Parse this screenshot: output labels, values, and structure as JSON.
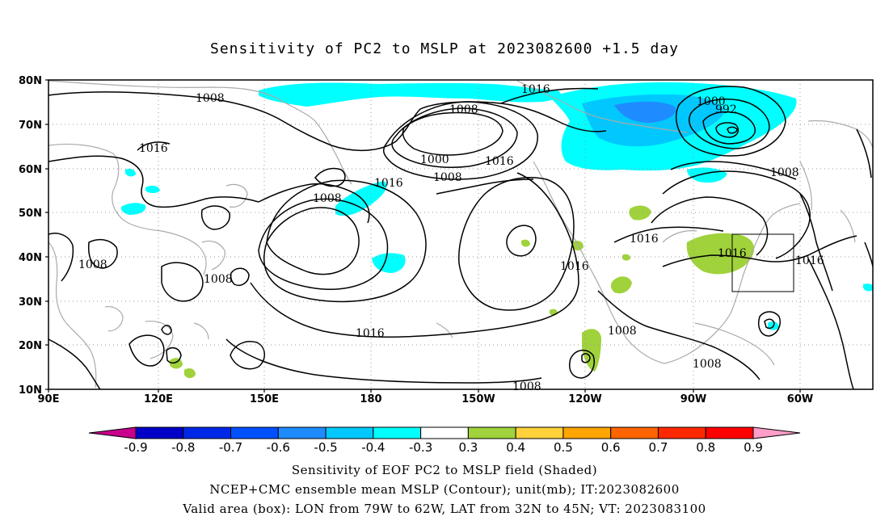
{
  "title": "Sensitivity of PC2 to MSLP at 2023082600 +1.5 day",
  "footer": {
    "line1": "Sensitivity of EOF PC2 to MSLP field (Shaded)",
    "line2": "NCEP+CMC ensemble mean MSLP (Contour); unit(mb); IT:2023082600",
    "line3": "Valid area (box): LON from 79W to 62W, LAT from 32N to 45N; VT: 2023083100"
  },
  "map": {
    "lat_labels": [
      "80N",
      "70N",
      "60N",
      "50N",
      "40N",
      "30N",
      "20N",
      "10N"
    ],
    "lon_labels": [
      "90E",
      "120E",
      "150E",
      "180",
      "150W",
      "120W",
      "90W",
      "60W"
    ],
    "contour_labels": [
      "1008",
      "1016",
      "1008",
      "1000",
      "992",
      "1016",
      "1008",
      "1016",
      "1000",
      "1008",
      "1008",
      "1016",
      "1008",
      "1016",
      "1016",
      "1016",
      "1016",
      "1008",
      "1008",
      "1008",
      "1016",
      "1008"
    ],
    "valid_box": {
      "lon_min": "79W",
      "lon_max": "62W",
      "lat_min": "32N",
      "lat_max": "45N"
    }
  },
  "colorbar": {
    "labels": [
      "-0.9",
      "-0.8",
      "-0.7",
      "-0.6",
      "-0.5",
      "-0.4",
      "-0.3",
      "0.3",
      "0.4",
      "0.5",
      "0.6",
      "0.7",
      "0.8",
      "0.9"
    ],
    "colors": [
      "#c8008c",
      "#0000c8",
      "#0028e6",
      "#0050ff",
      "#1e8cff",
      "#00c8ff",
      "#00ffff",
      "#ffffff",
      "#a0d23c",
      "#ffd23c",
      "#ffa500",
      "#ff6400",
      "#ff2800",
      "#ff0000",
      "#ff9ec8"
    ]
  },
  "colors": {
    "shade_neg_light": "#00ffff",
    "shade_neg_mid": "#00c8ff",
    "shade_neg_dark": "#1e8cff",
    "shade_pos": "#a0d23c",
    "coast": "#aaaaaa",
    "grid": "#999999"
  }
}
